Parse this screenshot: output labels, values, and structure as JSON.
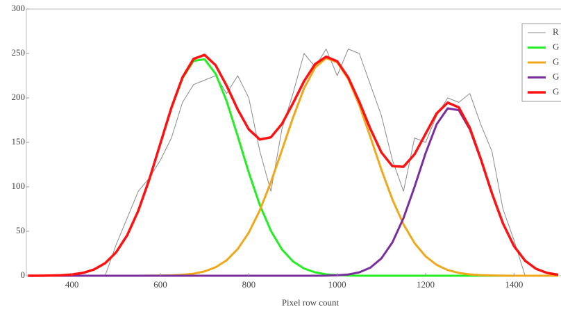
{
  "chart_data": {
    "type": "line",
    "x_label": "Pixel row count",
    "x": [
      300,
      325,
      350,
      375,
      400,
      425,
      450,
      475,
      500,
      525,
      550,
      575,
      600,
      625,
      650,
      675,
      700,
      725,
      750,
      775,
      800,
      825,
      850,
      875,
      900,
      925,
      950,
      975,
      1000,
      1025,
      1050,
      1075,
      1100,
      1125,
      1150,
      1175,
      1200,
      1225,
      1250,
      1275,
      1300,
      1325,
      1350,
      1375,
      1400,
      1425,
      1450,
      1475,
      1500
    ],
    "series": [
      {
        "name": "R",
        "color": "#8a8a8a",
        "width": 1,
        "values": [
          0,
          0,
          0,
          0,
          0,
          0,
          0,
          0,
          35,
          65,
          95,
          110,
          130,
          155,
          195,
          215,
          220,
          225,
          205,
          225,
          200,
          140,
          95,
          165,
          205,
          250,
          235,
          255,
          225,
          255,
          250,
          215,
          180,
          130,
          95,
          155,
          150,
          180,
          200,
          195,
          205,
          170,
          140,
          75,
          40,
          0,
          0,
          0,
          0
        ]
      },
      {
        "name": "G",
        "color": "#22ee22",
        "width": 3,
        "values": [
          0,
          0,
          0.2,
          0.5,
          1.4,
          3.2,
          7.0,
          14.1,
          26.4,
          45.6,
          73.1,
          108.3,
          148.6,
          188.7,
          222,
          241.6,
          243.5,
          227.2,
          196.2,
          156.9,
          116.1,
          79.5,
          50.5,
          29.6,
          16.1,
          8.1,
          3.8,
          1.6,
          0.6,
          0.2,
          0,
          0,
          0,
          0,
          0,
          0,
          0,
          0,
          0,
          0,
          0,
          0,
          0,
          0,
          0,
          0,
          0,
          0,
          0
        ]
      },
      {
        "name": "G",
        "color": "#f0a81a",
        "width": 3,
        "values": [
          0,
          0,
          0,
          0,
          0,
          0,
          0,
          0,
          0,
          0,
          0,
          0.1,
          0.2,
          0.4,
          1.1,
          2.3,
          4.9,
          9.5,
          17.4,
          30,
          48.5,
          73.7,
          105.2,
          141.2,
          177.9,
          210.7,
          234.2,
          244.7,
          240.1,
          221.4,
          191.8,
          156.1,
          119.2,
          85.6,
          57.8,
          36.6,
          21.8,
          12.2,
          6.4,
          3.2,
          1.5,
          0.6,
          0.3,
          0.1,
          0,
          0,
          0,
          0,
          0
        ]
      },
      {
        "name": "G",
        "color": "#7a2e9e",
        "width": 3,
        "values": [
          0,
          0,
          0,
          0,
          0,
          0,
          0,
          0,
          0,
          0,
          0,
          0,
          0,
          0,
          0,
          0,
          0,
          0,
          0,
          0,
          0,
          0,
          0,
          0,
          0,
          0,
          0,
          0.1,
          0.5,
          1.4,
          3.8,
          9.1,
          19.5,
          37.6,
          64.8,
          100,
          137.9,
          170.4,
          188.3,
          186.2,
          164.8,
          130.5,
          92.5,
          58.7,
          33.3,
          16.9,
          7.7,
          3.1,
          1.1
        ]
      },
      {
        "name": "G",
        "color": "#ff1111",
        "width": 3.5,
        "values": [
          0,
          0,
          0.2,
          0.5,
          1.4,
          3.2,
          7.0,
          14.1,
          26.4,
          45.6,
          73.1,
          108.4,
          148.8,
          189.1,
          223.1,
          243.9,
          248.4,
          236.7,
          213.6,
          186.9,
          164.6,
          153.2,
          155.7,
          170.8,
          194,
          218.8,
          238,
          246.4,
          241.2,
          223,
          195.6,
          165.2,
          138.7,
          123.2,
          122.6,
          136.6,
          159.7,
          182.6,
          194.7,
          189.4,
          166.3,
          131.1,
          92.8,
          58.8,
          33.3,
          16.9,
          7.7,
          3.1,
          1.1
        ]
      }
    ],
    "xlim": [
      300,
      1500
    ],
    "ylim": [
      0,
      300
    ],
    "xticks": [
      400,
      600,
      800,
      1000,
      1200,
      1400
    ],
    "yticks": [
      0,
      50,
      100,
      150,
      200,
      250,
      300
    ],
    "legend": "top-right"
  }
}
